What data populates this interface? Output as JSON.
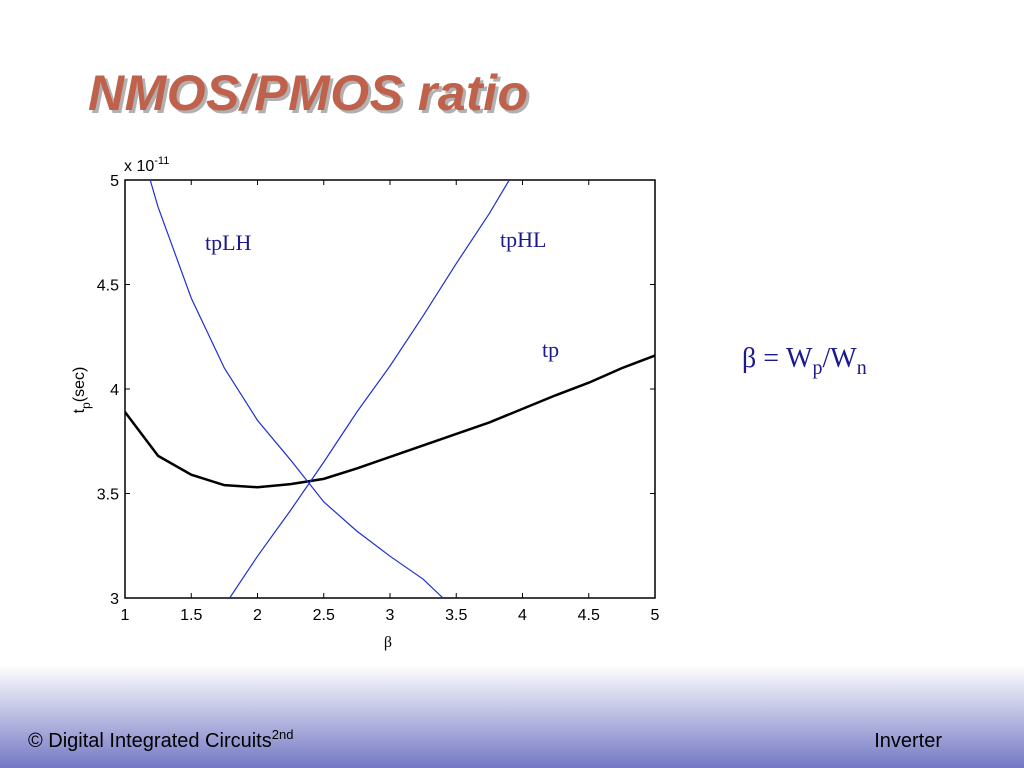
{
  "slide": {
    "title": "NMOS/PMOS ratio",
    "formula": {
      "beta": "β",
      "eq": "= W",
      "sub1": "p",
      "slash": "/W",
      "sub2": "n"
    },
    "footer_left": "© Digital Integrated Circuits",
    "footer_left_sup": "2nd",
    "footer_right": "Inverter"
  },
  "chart_data": {
    "type": "line",
    "xlabel": "β",
    "ylabel": "t",
    "ylabel_sub": "p",
    "ylabel_rest": "(sec)",
    "y_offset": "x 10",
    "y_offset_exp": "-11",
    "xlim": [
      1,
      5
    ],
    "ylim": [
      3,
      5
    ],
    "xticks": [
      1,
      1.5,
      2,
      2.5,
      3,
      3.5,
      4,
      4.5,
      5
    ],
    "yticks": [
      3,
      3.5,
      4,
      4.5,
      5
    ],
    "grid": false,
    "series": [
      {
        "name": "tp",
        "color": "#000000",
        "x": [
          1,
          1.25,
          1.5,
          1.75,
          2,
          2.25,
          2.5,
          2.75,
          3,
          3.25,
          3.5,
          3.75,
          4,
          4.25,
          4.5,
          4.75,
          5
        ],
        "values": [
          3.89,
          3.68,
          3.59,
          3.54,
          3.53,
          3.545,
          3.57,
          3.62,
          3.675,
          3.73,
          3.785,
          3.84,
          3.905,
          3.97,
          4.03,
          4.1,
          4.16
        ]
      },
      {
        "name": "tpLH",
        "color": "#1f2fd0",
        "x": [
          1.19,
          1.25,
          1.5,
          1.75,
          2,
          2.25,
          2.5,
          2.75,
          3,
          3.25,
          3.4
        ],
        "values": [
          5,
          4.87,
          4.435,
          4.1,
          3.85,
          3.66,
          3.46,
          3.32,
          3.2,
          3.09,
          3
        ]
      },
      {
        "name": "tpHL",
        "color": "#1f2fd0",
        "x": [
          1.79,
          2,
          2.25,
          2.5,
          2.75,
          3,
          3.25,
          3.5,
          3.75,
          3.9
        ],
        "values": [
          3,
          3.2,
          3.42,
          3.65,
          3.89,
          4.11,
          4.35,
          4.6,
          4.84,
          5
        ]
      }
    ]
  }
}
